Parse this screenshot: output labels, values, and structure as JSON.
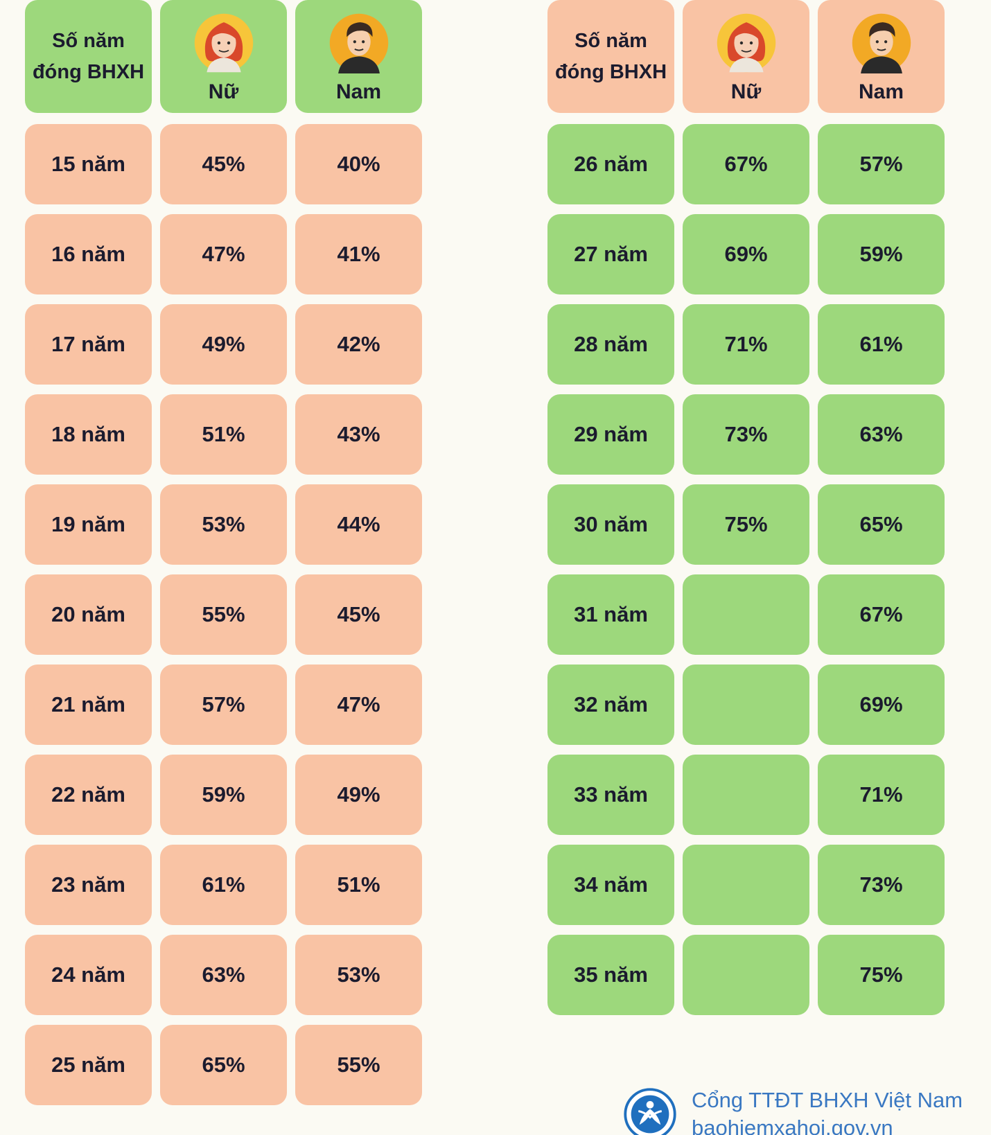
{
  "left_table": {
    "header": {
      "years_label_line1": "Số năm",
      "years_label_line2": "đóng BHXH",
      "female": "Nữ",
      "male": "Nam"
    },
    "rows": [
      {
        "years": "15 năm",
        "female": "45%",
        "male": "40%"
      },
      {
        "years": "16 năm",
        "female": "47%",
        "male": "41%"
      },
      {
        "years": "17 năm",
        "female": "49%",
        "male": "42%"
      },
      {
        "years": "18 năm",
        "female": "51%",
        "male": "43%"
      },
      {
        "years": "19 năm",
        "female": "53%",
        "male": "44%"
      },
      {
        "years": "20 năm",
        "female": "55%",
        "male": "45%"
      },
      {
        "years": "21 năm",
        "female": "57%",
        "male": "47%"
      },
      {
        "years": "22 năm",
        "female": "59%",
        "male": "49%"
      },
      {
        "years": "23 năm",
        "female": "61%",
        "male": "51%"
      },
      {
        "years": "24 năm",
        "female": "63%",
        "male": "53%"
      },
      {
        "years": "25 năm",
        "female": "65%",
        "male": "55%"
      }
    ]
  },
  "right_table": {
    "header": {
      "years_label_line1": "Số năm",
      "years_label_line2": "đóng BHXH",
      "female": "Nữ",
      "male": "Nam"
    },
    "rows": [
      {
        "years": "26 năm",
        "female": "67%",
        "male": "57%"
      },
      {
        "years": "27 năm",
        "female": "69%",
        "male": "59%"
      },
      {
        "years": "28 năm",
        "female": "71%",
        "male": "61%"
      },
      {
        "years": "29 năm",
        "female": "73%",
        "male": "63%"
      },
      {
        "years": "30 năm",
        "female": "75%",
        "male": "65%"
      },
      {
        "years": "31 năm",
        "female": "",
        "male": "67%"
      },
      {
        "years": "32 năm",
        "female": "",
        "male": "69%"
      },
      {
        "years": "33 năm",
        "female": "",
        "male": "71%"
      },
      {
        "years": "34 năm",
        "female": "",
        "male": "73%"
      },
      {
        "years": "35 năm",
        "female": "",
        "male": "75%"
      }
    ]
  },
  "footer": {
    "source_name": "Cổng TTĐT BHXH Việt Nam",
    "source_url": "baohiemxahoi.gov.vn",
    "logo_icon": "bhxh-logo-icon"
  },
  "colors": {
    "pink": "#f9c3a4",
    "green": "#9dd87c",
    "background": "#fbfaf3",
    "text": "#1b1b2e",
    "footer_text": "#3a78c2"
  }
}
